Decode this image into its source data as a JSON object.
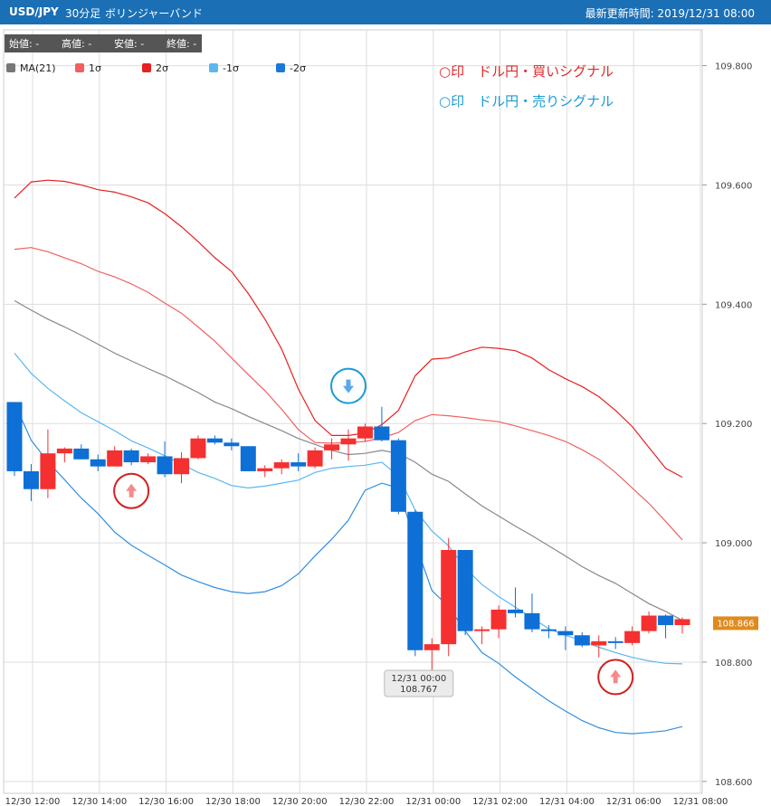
{
  "header": {
    "pair": "USD/JPY",
    "timeframe": "30分足",
    "chart_type": "ボリンジャーバンド",
    "updated": "最新更新時間: 2019/12/31 08:00"
  },
  "ohlc_bar": [
    "始値: -",
    "高値: -",
    "安値: -",
    "終値: -"
  ],
  "annotations": {
    "buy_signal": "○印　ドル円・買いシグナル",
    "sell_signal": "○印　ドル円・売りシグナル"
  },
  "current_price": "108.866",
  "tooltip": {
    "time": "12/31 00:00",
    "value": "108.767"
  },
  "colors": {
    "header": "#1a6fb5",
    "up": "#f53030",
    "down": "#0e6fd6",
    "ma": "#888888",
    "plus1": "#f06060",
    "plus2": "#e82020",
    "minus1": "#5ab8f0",
    "minus2": "#2f8fe0",
    "buy_marker": "#d42020",
    "sell_marker": "#1a9ad6"
  },
  "chart_data": {
    "type": "candlestick",
    "legend": [
      {
        "label": "MA(21)",
        "color": "#777777"
      },
      {
        "label": "1σ",
        "color": "#f06060"
      },
      {
        "label": "2σ",
        "color": "#e82020"
      },
      {
        "label": "-1σ",
        "color": "#5ab8f0"
      },
      {
        "label": "-2σ",
        "color": "#1a78d8"
      }
    ],
    "ylim": [
      108.58,
      109.86
    ],
    "y_ticks": [
      "109.800",
      "109.600",
      "109.400",
      "109.200",
      "109.000",
      "108.800",
      "108.600"
    ],
    "x_tick_labels": [
      "12/30 12:00",
      "12/30 14:00",
      "12/30 16:00",
      "12/30 18:00",
      "12/30 20:00",
      "12/30 22:00",
      "12/31 00:00",
      "12/31 02:00",
      "12/31 04:00",
      "12/31 06:00",
      "12/31 08:00"
    ],
    "times": [
      "12/30 12:00",
      "12/30 12:30",
      "12/30 13:00",
      "12/30 13:30",
      "12/30 14:00",
      "12/30 14:30",
      "12/30 15:00",
      "12/30 15:30",
      "12/30 16:00",
      "12/30 16:30",
      "12/30 17:00",
      "12/30 17:30",
      "12/30 18:00",
      "12/30 18:30",
      "12/30 19:00",
      "12/30 19:30",
      "12/30 20:00",
      "12/30 20:30",
      "12/30 21:00",
      "12/30 21:30",
      "12/30 22:00",
      "12/30 22:30",
      "12/30 23:00",
      "12/30 23:30",
      "12/31 00:00",
      "12/31 00:30",
      "12/31 01:00",
      "12/31 01:30",
      "12/31 02:00",
      "12/31 02:30",
      "12/31 03:00",
      "12/31 03:30",
      "12/31 04:00",
      "12/31 04:30",
      "12/31 05:00",
      "12/31 05:30",
      "12/31 06:00",
      "12/31 06:30",
      "12/31 07:00",
      "12/31 07:30",
      "12/31 08:00"
    ],
    "candles": [
      {
        "o": 109.236,
        "h": 109.236,
        "l": 109.112,
        "c": 109.12
      },
      {
        "o": 109.12,
        "h": 109.132,
        "l": 109.07,
        "c": 109.09
      },
      {
        "o": 109.09,
        "h": 109.19,
        "l": 109.075,
        "c": 109.15
      },
      {
        "o": 109.15,
        "h": 109.16,
        "l": 109.135,
        "c": 109.158
      },
      {
        "o": 109.158,
        "h": 109.165,
        "l": 109.14,
        "c": 109.14
      },
      {
        "o": 109.14,
        "h": 109.148,
        "l": 109.12,
        "c": 109.128
      },
      {
        "o": 109.128,
        "h": 109.162,
        "l": 109.128,
        "c": 109.155
      },
      {
        "o": 109.155,
        "h": 109.158,
        "l": 109.13,
        "c": 109.135
      },
      {
        "o": 109.135,
        "h": 109.15,
        "l": 109.132,
        "c": 109.145
      },
      {
        "o": 109.145,
        "h": 109.17,
        "l": 109.11,
        "c": 109.115
      },
      {
        "o": 109.115,
        "h": 109.152,
        "l": 109.1,
        "c": 109.142
      },
      {
        "o": 109.142,
        "h": 109.18,
        "l": 109.14,
        "c": 109.175
      },
      {
        "o": 109.175,
        "h": 109.18,
        "l": 109.165,
        "c": 109.168
      },
      {
        "o": 109.168,
        "h": 109.175,
        "l": 109.155,
        "c": 109.162
      },
      {
        "o": 109.162,
        "h": 109.162,
        "l": 109.12,
        "c": 109.12
      },
      {
        "o": 109.12,
        "h": 109.13,
        "l": 109.11,
        "c": 109.125
      },
      {
        "o": 109.125,
        "h": 109.14,
        "l": 109.115,
        "c": 109.135
      },
      {
        "o": 109.135,
        "h": 109.15,
        "l": 109.12,
        "c": 109.128
      },
      {
        "o": 109.128,
        "h": 109.16,
        "l": 109.125,
        "c": 109.155
      },
      {
        "o": 109.155,
        "h": 109.175,
        "l": 109.14,
        "c": 109.165
      },
      {
        "o": 109.165,
        "h": 109.19,
        "l": 109.138,
        "c": 109.175
      },
      {
        "o": 109.175,
        "h": 109.2,
        "l": 109.17,
        "c": 109.195
      },
      {
        "o": 109.195,
        "h": 109.228,
        "l": 109.17,
        "c": 109.172
      },
      {
        "o": 109.172,
        "h": 109.175,
        "l": 109.048,
        "c": 109.052
      },
      {
        "o": 109.052,
        "h": 109.055,
        "l": 108.81,
        "c": 108.82
      },
      {
        "o": 108.82,
        "h": 108.84,
        "l": 108.767,
        "c": 108.83
      },
      {
        "o": 108.83,
        "h": 109.008,
        "l": 108.81,
        "c": 108.988
      },
      {
        "o": 108.988,
        "h": 108.988,
        "l": 108.845,
        "c": 108.852
      },
      {
        "o": 108.852,
        "h": 108.86,
        "l": 108.83,
        "c": 108.855
      },
      {
        "o": 108.855,
        "h": 108.895,
        "l": 108.84,
        "c": 108.888
      },
      {
        "o": 108.888,
        "h": 108.925,
        "l": 108.875,
        "c": 108.882
      },
      {
        "o": 108.882,
        "h": 108.915,
        "l": 108.85,
        "c": 108.855
      },
      {
        "o": 108.855,
        "h": 108.862,
        "l": 108.84,
        "c": 108.852
      },
      {
        "o": 108.852,
        "h": 108.86,
        "l": 108.82,
        "c": 108.845
      },
      {
        "o": 108.845,
        "h": 108.85,
        "l": 108.825,
        "c": 108.828
      },
      {
        "o": 108.828,
        "h": 108.845,
        "l": 108.808,
        "c": 108.835
      },
      {
        "o": 108.835,
        "h": 108.842,
        "l": 108.822,
        "c": 108.832
      },
      {
        "o": 108.832,
        "h": 108.86,
        "l": 108.828,
        "c": 108.852
      },
      {
        "o": 108.852,
        "h": 108.885,
        "l": 108.848,
        "c": 108.878
      },
      {
        "o": 108.878,
        "h": 108.88,
        "l": 108.84,
        "c": 108.862
      },
      {
        "o": 108.862,
        "h": 108.875,
        "l": 108.848,
        "c": 108.872
      }
    ],
    "series": [
      {
        "name": "MA(21)",
        "values": [
          109.406,
          109.39,
          109.375,
          109.362,
          109.348,
          109.333,
          109.318,
          109.305,
          109.292,
          109.28,
          109.266,
          109.252,
          109.236,
          109.225,
          109.212,
          109.2,
          109.188,
          109.175,
          109.165,
          109.155,
          109.148,
          109.15,
          109.155,
          109.15,
          109.135,
          109.115,
          109.103,
          109.082,
          109.062,
          109.045,
          109.028,
          109.012,
          108.995,
          108.978,
          108.96,
          108.945,
          108.932,
          108.915,
          108.898,
          108.885,
          108.87
        ]
      },
      {
        "name": "1σ",
        "values": [
          109.492,
          109.495,
          109.488,
          109.478,
          109.468,
          109.455,
          109.446,
          109.434,
          109.42,
          109.402,
          109.385,
          109.362,
          109.338,
          109.31,
          109.282,
          109.255,
          109.224,
          109.19,
          109.168,
          109.167,
          109.168,
          109.17,
          109.176,
          109.185,
          109.205,
          109.215,
          109.213,
          109.21,
          109.206,
          109.203,
          109.196,
          109.188,
          109.18,
          109.17,
          109.156,
          109.14,
          109.118,
          109.092,
          109.066,
          109.036,
          109.005
        ]
      },
      {
        "name": "2σ",
        "values": [
          109.578,
          109.605,
          109.608,
          109.606,
          109.6,
          109.592,
          109.588,
          109.58,
          109.57,
          109.552,
          109.53,
          109.505,
          109.478,
          109.455,
          109.418,
          109.375,
          109.325,
          109.258,
          109.205,
          109.18,
          109.18,
          109.184,
          109.198,
          109.222,
          109.28,
          109.308,
          109.31,
          109.32,
          109.328,
          109.326,
          109.322,
          109.31,
          109.29,
          109.275,
          109.262,
          109.245,
          109.222,
          109.195,
          109.16,
          109.125,
          109.11
        ]
      },
      {
        "name": "-1σ",
        "values": [
          109.318,
          109.284,
          109.259,
          109.238,
          109.218,
          109.203,
          109.188,
          109.171,
          109.159,
          109.146,
          109.132,
          109.118,
          109.108,
          109.096,
          109.092,
          109.095,
          109.1,
          109.105,
          109.118,
          109.125,
          109.128,
          109.13,
          109.135,
          109.112,
          109.055,
          109.02,
          108.995,
          108.958,
          108.93,
          108.91,
          108.892,
          108.874,
          108.856,
          108.845,
          108.836,
          108.825,
          108.816,
          108.808,
          108.802,
          108.798,
          108.797
        ]
      },
      {
        "name": "-2σ",
        "values": [
          109.234,
          109.172,
          109.136,
          109.106,
          109.075,
          109.049,
          109.018,
          108.996,
          108.979,
          108.963,
          108.946,
          108.935,
          108.925,
          108.918,
          108.915,
          108.918,
          108.928,
          108.948,
          108.978,
          109.006,
          109.038,
          109.088,
          109.1,
          109.092,
          109.0,
          108.92,
          108.893,
          108.852,
          108.816,
          108.798,
          108.775,
          108.755,
          108.735,
          108.718,
          108.702,
          108.69,
          108.682,
          108.68,
          108.682,
          108.685,
          108.692
        ]
      }
    ],
    "signals": [
      {
        "type": "buy",
        "time": "12/30 15:30",
        "value": 109.087
      },
      {
        "type": "sell",
        "time": "12/30 22:00",
        "value": 109.263
      },
      {
        "type": "buy",
        "time": "12/31 06:00",
        "value": 108.775
      }
    ],
    "current_value": 108.866
  }
}
